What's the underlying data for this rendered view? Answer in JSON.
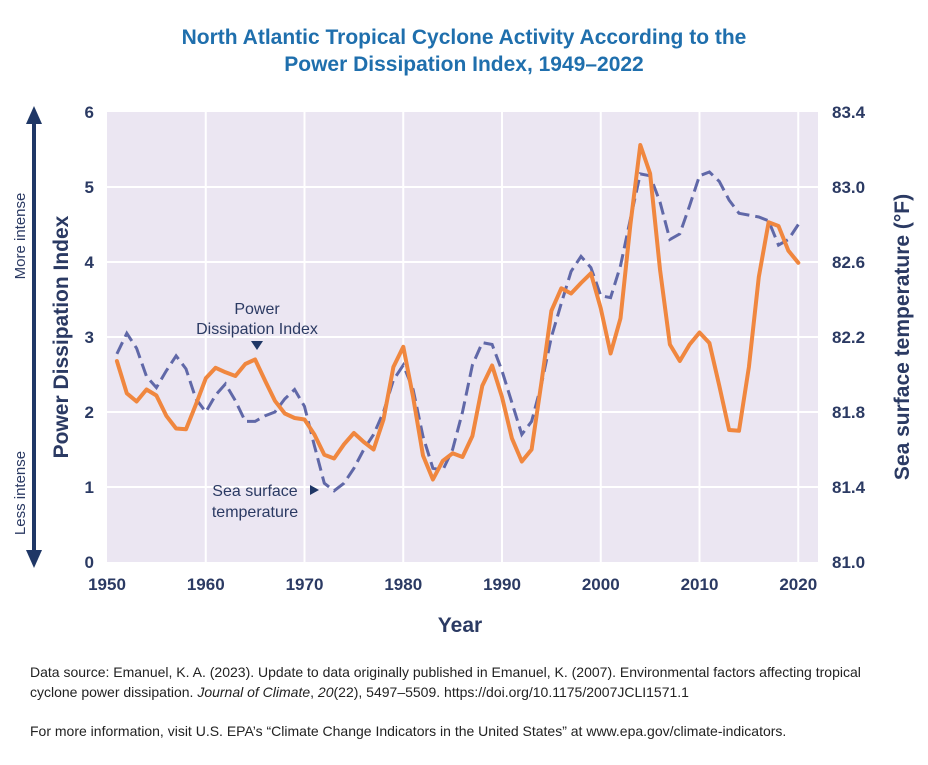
{
  "chart_data": {
    "type": "line",
    "title_lines": [
      "North Atlantic Tropical Cyclone Activity According to the",
      "Power Dissipation Index, 1949–2022"
    ],
    "xlabel": "Year",
    "ylabel": "Power Dissipation Index",
    "y2label": "Sea surface temperature (°F)",
    "xlim": [
      1950,
      2022
    ],
    "ylim": [
      0,
      6
    ],
    "y2lim": [
      81.0,
      83.4
    ],
    "x_ticks": [
      "1950",
      "1960",
      "1970",
      "1980",
      "1990",
      "2000",
      "2010",
      "2020"
    ],
    "y_ticks": [
      "0",
      "1",
      "2",
      "3",
      "4",
      "5",
      "6"
    ],
    "y2_ticks": [
      "81.0",
      "81.4",
      "81.8",
      "82.2",
      "82.6",
      "83.0",
      "83.4"
    ],
    "grid": true,
    "more_intense_label": "More intense",
    "less_intense_label": "Less intense",
    "series": [
      {
        "label": [
          "Power",
          "Dissipation Index"
        ],
        "color": "#f0873f",
        "axis": "left",
        "x": [
          1951,
          1952,
          1953,
          1954,
          1955,
          1956,
          1957,
          1958,
          1959,
          1960,
          1961,
          1962,
          1963,
          1964,
          1965,
          1966,
          1967,
          1968,
          1969,
          1970,
          1971,
          1972,
          1973,
          1974,
          1975,
          1976,
          1977,
          1978,
          1979,
          1980,
          1981,
          1982,
          1983,
          1984,
          1985,
          1986,
          1987,
          1988,
          1989,
          1990,
          1991,
          1992,
          1993,
          1994,
          1995,
          1996,
          1997,
          1998,
          1999,
          2000,
          2001,
          2002,
          2003,
          2004,
          2005,
          2006,
          2007,
          2008,
          2009,
          2010,
          2011,
          2012,
          2013,
          2014,
          2015,
          2016,
          2017,
          2018,
          2019,
          2020
        ],
        "values": [
          2.68,
          2.25,
          2.14,
          2.3,
          2.22,
          1.95,
          1.78,
          1.77,
          2.1,
          2.45,
          2.59,
          2.53,
          2.48,
          2.64,
          2.7,
          2.42,
          2.15,
          1.98,
          1.92,
          1.9,
          1.7,
          1.43,
          1.38,
          1.57,
          1.72,
          1.6,
          1.5,
          1.9,
          2.6,
          2.87,
          2.2,
          1.42,
          1.1,
          1.35,
          1.45,
          1.4,
          1.68,
          2.35,
          2.62,
          2.2,
          1.65,
          1.34,
          1.5,
          2.4,
          3.35,
          3.65,
          3.58,
          3.72,
          3.85,
          3.38,
          2.78,
          3.25,
          4.5,
          5.56,
          5.18,
          3.9,
          2.9,
          2.68,
          2.9,
          3.06,
          2.92,
          2.35,
          1.76,
          1.75,
          2.6,
          3.8,
          4.53,
          4.48,
          4.15,
          3.99
        ]
      },
      {
        "label": [
          "Sea surface",
          "temperature"
        ],
        "color": "#6068a8",
        "axis": "right",
        "x": [
          1951,
          1952,
          1953,
          1954,
          1955,
          1956,
          1957,
          1958,
          1959,
          1960,
          1961,
          1962,
          1963,
          1964,
          1965,
          1966,
          1967,
          1968,
          1969,
          1970,
          1971,
          1972,
          1973,
          1974,
          1975,
          1976,
          1977,
          1978,
          1979,
          1980,
          1981,
          1982,
          1983,
          1984,
          1985,
          1986,
          1987,
          1988,
          1989,
          1990,
          1991,
          1992,
          1993,
          1994,
          1995,
          1996,
          1997,
          1998,
          1999,
          2000,
          2001,
          2002,
          2003,
          2004,
          2005,
          2006,
          2007,
          2008,
          2009,
          2010,
          2011,
          2012,
          2013,
          2014,
          2015,
          2016,
          2017,
          2018,
          2019,
          2020
        ],
        "values": [
          82.11,
          82.22,
          82.14,
          81.99,
          81.93,
          82.02,
          82.1,
          82.03,
          81.87,
          81.8,
          81.89,
          81.95,
          81.86,
          81.75,
          81.75,
          81.78,
          81.8,
          81.87,
          81.92,
          81.83,
          81.62,
          81.42,
          81.38,
          81.42,
          81.5,
          81.6,
          81.68,
          81.8,
          81.97,
          82.05,
          81.92,
          81.67,
          81.5,
          81.49,
          81.6,
          81.8,
          82.05,
          82.17,
          82.16,
          82.02,
          81.85,
          81.68,
          81.75,
          81.95,
          82.2,
          82.38,
          82.55,
          82.63,
          82.57,
          82.42,
          82.41,
          82.58,
          82.83,
          83.07,
          83.06,
          82.92,
          82.72,
          82.75,
          82.9,
          83.06,
          83.08,
          83.03,
          82.93,
          82.86,
          82.85,
          82.84,
          82.82,
          82.69,
          82.72,
          82.8
        ]
      }
    ]
  },
  "footer": {
    "source_part1": "Data source: Emanuel, K. A. (2023). Update to data originally published in Emanuel, K. (2007). Environmental factors affecting tropical cyclone power dissipation. ",
    "journal": "Journal of Climate",
    "source_sep": ", ",
    "volume": "20",
    "source_part2": "(22), 5497–5509. https://doi.org/10.1175/2007JCLI1571.1",
    "more_info": "For more information, visit U.S. EPA’s “Climate Change Indicators in the United States” at www.epa.gov/climate-indicators."
  }
}
